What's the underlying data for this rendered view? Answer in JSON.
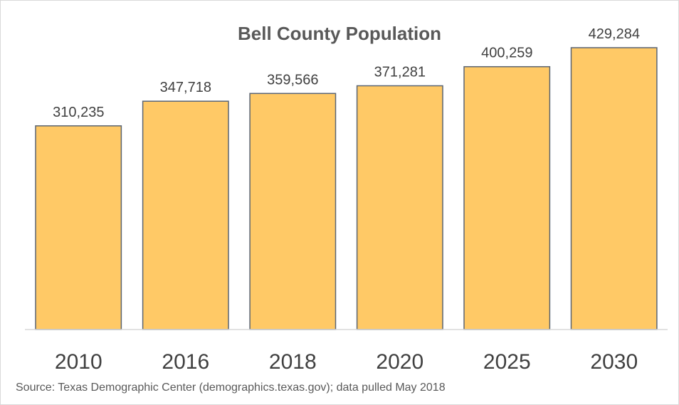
{
  "chart_data": {
    "type": "bar",
    "title": "Bell County Population",
    "categories": [
      "2010",
      "2016",
      "2018",
      "2020",
      "2025",
      "2030"
    ],
    "values": [
      310235,
      347718,
      359566,
      371281,
      400259,
      429284
    ],
    "data_labels": [
      "310,235",
      "347,718",
      "359,566",
      "371,281",
      "400,259",
      "429,284"
    ],
    "xlabel": "",
    "ylabel": "",
    "ylim": [
      0,
      465000
    ],
    "grid": false,
    "legend": "none",
    "bar_color": "#FFC966",
    "bar_edge_color": "#5A6472",
    "source": "Source:  Texas Demographic Center (demographics.texas.gov); data pulled May 2018"
  }
}
